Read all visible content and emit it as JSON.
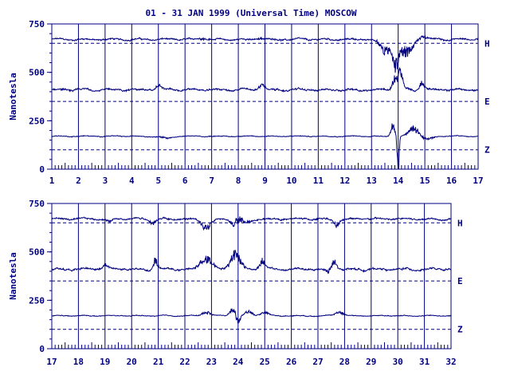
{
  "title": "01 - 31 JAN 1999 (Universal Time) MOSCOW",
  "colors": {
    "ink": "#000080",
    "background": "#ffffff"
  },
  "chart_data": [
    {
      "type": "line",
      "title": "01 - 31 JAN 1999 (Universal Time) MOSCOW",
      "xlabel": "",
      "ylabel": "Nanotesla",
      "xlim": [
        1,
        17
      ],
      "ylim": [
        0,
        750
      ],
      "x_ticks": [
        "1",
        "2",
        "3",
        "4",
        "5",
        "6",
        "7",
        "8",
        "9",
        "10",
        "11",
        "12",
        "13",
        "14",
        "15",
        "16",
        "17"
      ],
      "y_ticks": [
        "0",
        "250",
        "500",
        "750"
      ],
      "grid": "vertical lines at each day",
      "baselines": [
        650,
        350,
        100
      ],
      "series": [
        {
          "name": "H",
          "baseline": 650,
          "level": 670,
          "noise": 6,
          "events": [
            [
              6.7,
              8,
              0.2
            ],
            [
              8.8,
              10,
              0.15
            ],
            [
              13.5,
              -60,
              0.25
            ],
            [
              13.9,
              -120,
              0.15
            ],
            [
              14.3,
              -70,
              0.3
            ],
            [
              14.9,
              15,
              0.2
            ]
          ]
        },
        {
          "name": "E",
          "baseline": 350,
          "level": 410,
          "noise": 7,
          "events": [
            [
              5.0,
              20,
              0.15
            ],
            [
              8.9,
              30,
              0.15
            ],
            [
              13.9,
              60,
              0.15
            ],
            [
              14.1,
              80,
              0.1
            ],
            [
              14.9,
              40,
              0.1
            ]
          ]
        },
        {
          "name": "Z",
          "baseline": 100,
          "level": 170,
          "noise": 3,
          "events": [
            [
              5.3,
              -10,
              0.3
            ],
            [
              13.8,
              60,
              0.1
            ],
            [
              14.0,
              -170,
              0.05
            ],
            [
              14.6,
              40,
              0.25
            ],
            [
              15.1,
              -15,
              0.3
            ]
          ]
        }
      ]
    },
    {
      "type": "line",
      "title": "",
      "xlabel": "",
      "ylabel": "Nanotesla",
      "xlim": [
        17,
        32
      ],
      "ylim": [
        0,
        750
      ],
      "x_ticks": [
        "17",
        "18",
        "19",
        "20",
        "21",
        "22",
        "23",
        "24",
        "25",
        "26",
        "27",
        "28",
        "29",
        "30",
        "31",
        "32"
      ],
      "y_ticks": [
        "0",
        "250",
        "500",
        "750"
      ],
      "grid": "vertical lines at each day",
      "baselines": [
        650,
        350,
        100
      ],
      "series": [
        {
          "name": "H",
          "baseline": 650,
          "level": 670,
          "noise": 6,
          "events": [
            [
              19.2,
              -15,
              0.15
            ],
            [
              20.8,
              -20,
              0.15
            ],
            [
              22.8,
              -40,
              0.25
            ],
            [
              23.9,
              -40,
              0.2
            ],
            [
              24.0,
              40,
              0.15
            ],
            [
              24.3,
              -20,
              0.3
            ],
            [
              27.7,
              -30,
              0.15
            ]
          ]
        },
        {
          "name": "E",
          "baseline": 350,
          "level": 410,
          "noise": 7,
          "events": [
            [
              19.0,
              25,
              0.15
            ],
            [
              20.9,
              50,
              0.1
            ],
            [
              22.8,
              55,
              0.3
            ],
            [
              23.9,
              80,
              0.25
            ],
            [
              24.9,
              45,
              0.15
            ],
            [
              27.6,
              40,
              0.15
            ],
            [
              27.4,
              -20,
              0.15
            ]
          ]
        },
        {
          "name": "Z",
          "baseline": 100,
          "level": 170,
          "noise": 3,
          "events": [
            [
              22.8,
              20,
              0.2
            ],
            [
              23.8,
              35,
              0.15
            ],
            [
              24.0,
              -40,
              0.1
            ],
            [
              24.4,
              20,
              0.2
            ],
            [
              25.0,
              15,
              0.2
            ],
            [
              27.8,
              20,
              0.2
            ]
          ]
        }
      ]
    }
  ]
}
